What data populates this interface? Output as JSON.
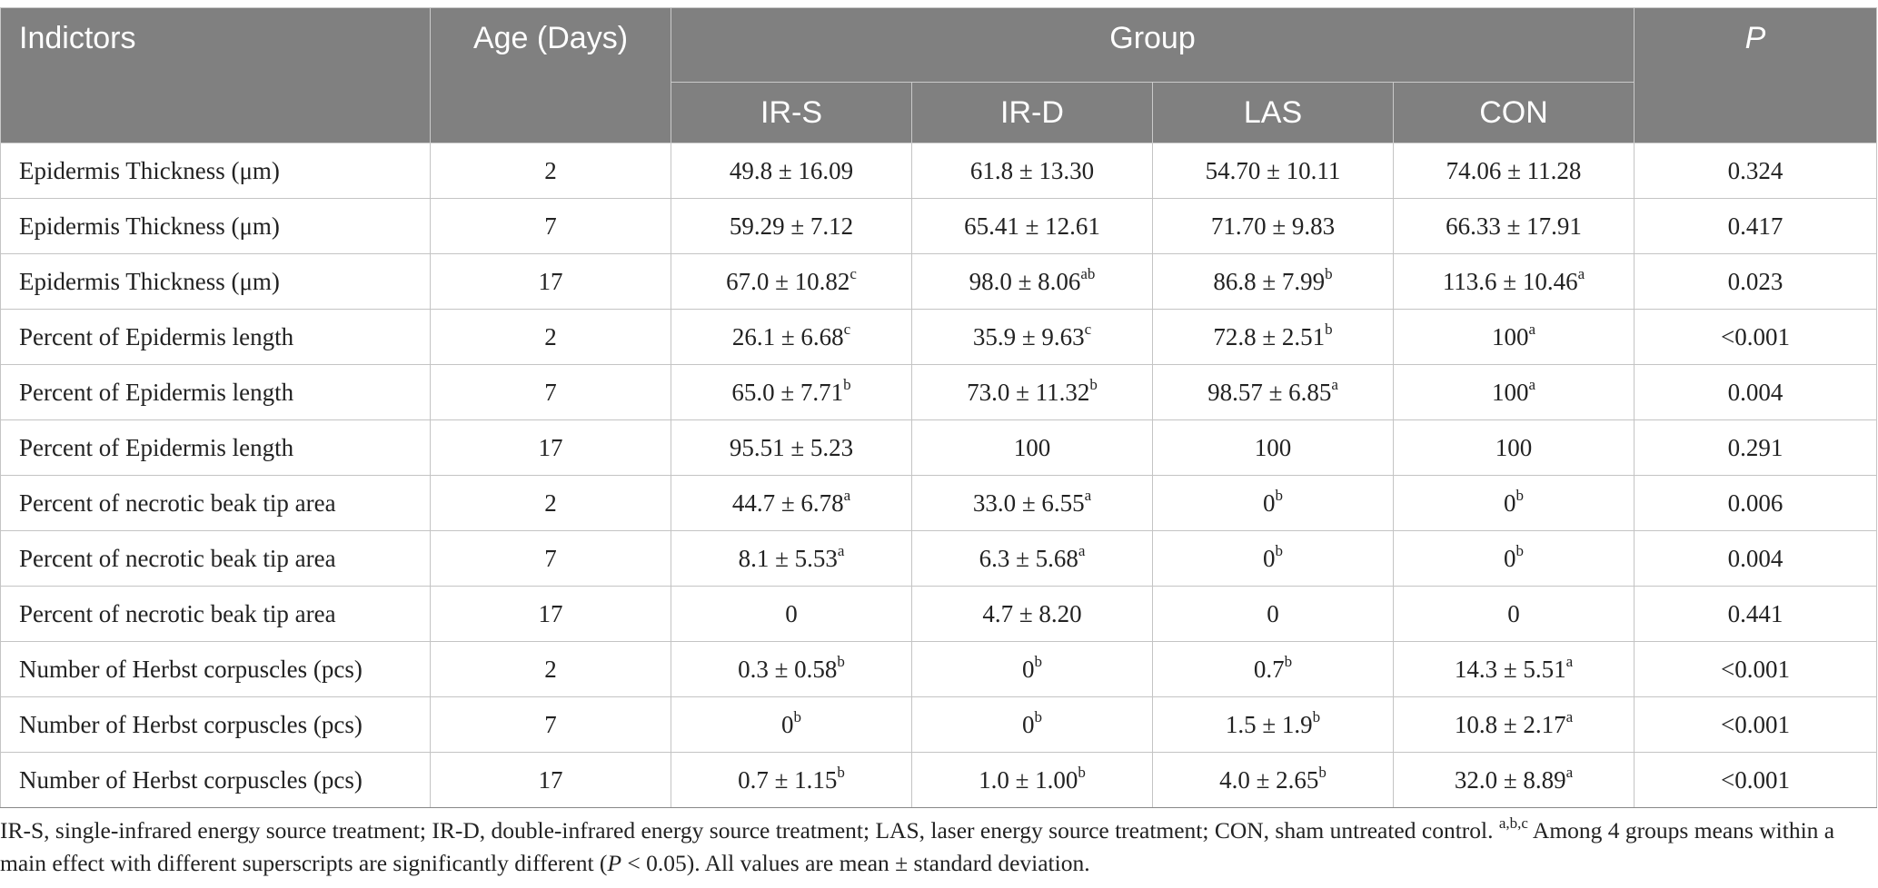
{
  "table": {
    "headers": {
      "indicators": "Indictors",
      "age": "Age (Days)",
      "group": "Group",
      "p": "P",
      "groups": [
        "IR-S",
        "IR-D",
        "LAS",
        "CON"
      ]
    },
    "rows": [
      {
        "indicator": "Epidermis Thickness (μm)",
        "age": "2",
        "cells": [
          {
            "v": "49.8 ± 16.09",
            "s": ""
          },
          {
            "v": "61.8 ± 13.30",
            "s": ""
          },
          {
            "v": "54.70 ± 10.11",
            "s": ""
          },
          {
            "v": "74.06 ± 11.28",
            "s": ""
          }
        ],
        "p": "0.324"
      },
      {
        "indicator": "Epidermis Thickness (μm)",
        "age": "7",
        "cells": [
          {
            "v": "59.29 ± 7.12",
            "s": ""
          },
          {
            "v": "65.41 ± 12.61",
            "s": ""
          },
          {
            "v": "71.70 ± 9.83",
            "s": ""
          },
          {
            "v": "66.33 ± 17.91",
            "s": ""
          }
        ],
        "p": "0.417"
      },
      {
        "indicator": "Epidermis Thickness (μm)",
        "age": "17",
        "cells": [
          {
            "v": "67.0 ± 10.82",
            "s": "c"
          },
          {
            "v": "98.0 ± 8.06",
            "s": "ab"
          },
          {
            "v": "86.8 ± 7.99",
            "s": "b"
          },
          {
            "v": "113.6 ± 10.46",
            "s": "a"
          }
        ],
        "p": "0.023"
      },
      {
        "indicator": "Percent of Epidermis length",
        "age": "2",
        "cells": [
          {
            "v": "26.1 ± 6.68",
            "s": "c"
          },
          {
            "v": "35.9 ± 9.63",
            "s": "c"
          },
          {
            "v": "72.8 ± 2.51",
            "s": "b"
          },
          {
            "v": "100",
            "s": "a"
          }
        ],
        "p": "<0.001"
      },
      {
        "indicator": "Percent of Epidermis length",
        "age": "7",
        "cells": [
          {
            "v": "65.0 ± 7.71",
            "s": "b"
          },
          {
            "v": "73.0 ± 11.32",
            "s": "b"
          },
          {
            "v": "98.57 ± 6.85",
            "s": "a"
          },
          {
            "v": "100",
            "s": "a"
          }
        ],
        "p": "0.004"
      },
      {
        "indicator": "Percent of Epidermis length",
        "age": "17",
        "cells": [
          {
            "v": "95.51 ± 5.23",
            "s": ""
          },
          {
            "v": "100",
            "s": ""
          },
          {
            "v": "100",
            "s": ""
          },
          {
            "v": "100",
            "s": ""
          }
        ],
        "p": "0.291"
      },
      {
        "indicator": "Percent of necrotic beak tip area",
        "age": "2",
        "cells": [
          {
            "v": "44.7 ± 6.78",
            "s": "a"
          },
          {
            "v": "33.0 ± 6.55",
            "s": "a"
          },
          {
            "v": "0",
            "s": "b"
          },
          {
            "v": "0",
            "s": "b"
          }
        ],
        "p": "0.006"
      },
      {
        "indicator": "Percent of necrotic beak tip area",
        "age": "7",
        "cells": [
          {
            "v": "8.1 ± 5.53",
            "s": "a"
          },
          {
            "v": "6.3 ± 5.68",
            "s": "a"
          },
          {
            "v": "0",
            "s": "b"
          },
          {
            "v": "0",
            "s": "b"
          }
        ],
        "p": "0.004"
      },
      {
        "indicator": "Percent of necrotic beak tip area",
        "age": "17",
        "cells": [
          {
            "v": "0",
            "s": ""
          },
          {
            "v": "4.7 ± 8.20",
            "s": ""
          },
          {
            "v": "0",
            "s": ""
          },
          {
            "v": "0",
            "s": ""
          }
        ],
        "p": "0.441"
      },
      {
        "indicator": "Number of Herbst corpuscles (pcs)",
        "age": "2",
        "cells": [
          {
            "v": "0.3 ± 0.58",
            "s": "b"
          },
          {
            "v": "0",
            "s": "b"
          },
          {
            "v": "0.7",
            "s": "b"
          },
          {
            "v": "14.3 ± 5.51",
            "s": "a"
          }
        ],
        "p": "<0.001"
      },
      {
        "indicator": "Number of Herbst corpuscles (pcs)",
        "age": "7",
        "cells": [
          {
            "v": "0",
            "s": "b"
          },
          {
            "v": "0",
            "s": "b"
          },
          {
            "v": "1.5 ± 1.9",
            "s": "b"
          },
          {
            "v": "10.8 ± 2.17",
            "s": "a"
          }
        ],
        "p": "<0.001"
      },
      {
        "indicator": "Number of Herbst corpuscles (pcs)",
        "age": "17",
        "cells": [
          {
            "v": "0.7 ± 1.15",
            "s": "b"
          },
          {
            "v": "1.0 ± 1.00",
            "s": "b"
          },
          {
            "v": "4.0 ± 2.65",
            "s": "b"
          },
          {
            "v": "32.0 ± 8.89",
            "s": "a"
          }
        ],
        "p": "<0.001"
      }
    ]
  },
  "footnote": {
    "part1": "IR-S, single-infrared energy source treatment; IR-D, double-infrared energy source treatment; LAS, laser energy source treatment; CON, sham untreated control. ",
    "sup": "a,b,c",
    "part2": " Among 4 groups means within a main effect with different superscripts are significantly different (",
    "p_italic": "P",
    "part3": " < 0.05). All values are mean ± standard deviation."
  },
  "colors": {
    "header_bg": "#808080",
    "header_text": "#ffffff",
    "grid": "#c4c4c4",
    "text": "#222222"
  }
}
